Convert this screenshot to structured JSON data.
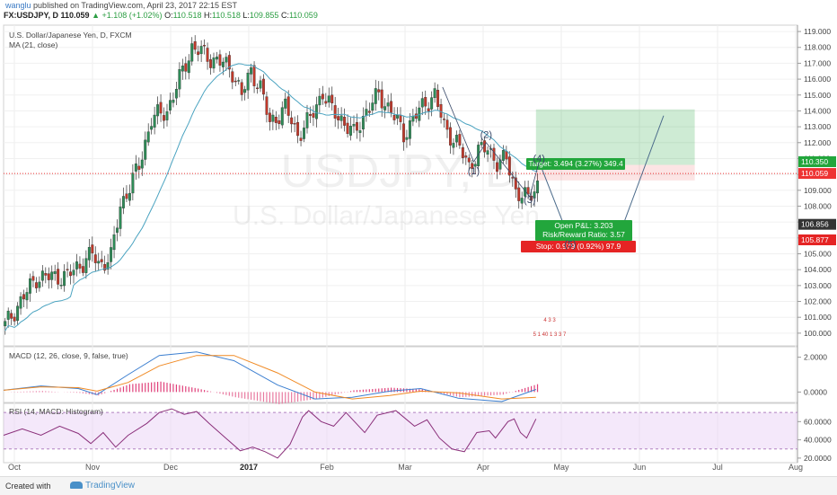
{
  "header": {
    "user": "wanglu",
    "published": "published on TradingView.com, April 23, 2017 22:15 EST",
    "symbol": "FX:USDJPY, D",
    "last": "110.059",
    "change": "▲ +1.108 (+1.02%)",
    "open_label": "O:",
    "open": "110.518",
    "high_label": "H:",
    "high": "110.518",
    "low_label": "L:",
    "low": "109.855",
    "close_label": "C:",
    "close": "110.059"
  },
  "legends": {
    "main_title": "U.S. Dollar/Japanese Yen, D, FXCM",
    "ma": "MA (21, close)",
    "macd": "MACD (12, 26, close, 9, false, true)",
    "rsi": "RSI (14, MACD: Histogram)"
  },
  "watermark": {
    "symbol": "USDJPY, D",
    "name": "U.S. Dollar/Japanese Yen"
  },
  "footer": {
    "created": "Created with",
    "brand": "TradingView"
  },
  "colors": {
    "up": "#2e8b57",
    "down": "#c0392b",
    "ma": "#4aa3c0",
    "macd": "#3c7fd0",
    "signal": "#f08a24",
    "rsi": "#8a2f7a",
    "target": "#22a63c",
    "stop": "#e52424"
  },
  "chart_data": [
    {
      "type": "candlestick",
      "title": "U.S. Dollar/Japanese Yen, D, FXCM",
      "ylim": [
        99.2,
        119.4
      ],
      "yticks": [
        "119.000",
        "118.000",
        "117.000",
        "116.000",
        "115.000",
        "114.000",
        "113.000",
        "112.000",
        "111.000",
        "110.000",
        "109.000",
        "108.000",
        "107.000",
        "106.000",
        "105.000",
        "104.000",
        "103.000",
        "102.000",
        "101.000",
        "100.000"
      ],
      "xticks": [
        "Oct",
        "Nov",
        "Dec",
        "2017",
        "Feb",
        "Mar",
        "Apr",
        "May",
        "Jun",
        "Jul",
        "Aug"
      ],
      "price_labels": {
        "last": "110.059",
        "high_marker": "110.350",
        "open_pnl": "106.856",
        "stop": "105.877"
      },
      "waypoints": [
        [
          0,
          100.5
        ],
        [
          10,
          103.5
        ],
        [
          20,
          103.6
        ],
        [
          28,
          105.0
        ],
        [
          30,
          104.3
        ],
        [
          34,
          104.8
        ],
        [
          37,
          108.0
        ],
        [
          43,
          110.5
        ],
        [
          47,
          113.5
        ],
        [
          52,
          114.0
        ],
        [
          56,
          116.0
        ],
        [
          60,
          118.0
        ],
        [
          63,
          117.7
        ],
        [
          66,
          117.3
        ],
        [
          70,
          117.0
        ],
        [
          73,
          116.5
        ],
        [
          76,
          115.0
        ],
        [
          79,
          116.5
        ],
        [
          82,
          115.5
        ],
        [
          85,
          113.2
        ],
        [
          90,
          114.2
        ],
        [
          94,
          112.5
        ],
        [
          98,
          113.5
        ],
        [
          102,
          115.2
        ],
        [
          105,
          114.0
        ],
        [
          108,
          113.5
        ],
        [
          112,
          112.5
        ],
        [
          116,
          114.0
        ],
        [
          120,
          115.0
        ],
        [
          124,
          114.0
        ],
        [
          128,
          112.5
        ],
        [
          131,
          113.5
        ],
        [
          135,
          114.5
        ],
        [
          138,
          115.0
        ],
        [
          141,
          113.0
        ],
        [
          145,
          112.0
        ],
        [
          149,
          110.5
        ],
        [
          152,
          111.5
        ],
        [
          155,
          111.6
        ],
        [
          158,
          110.8
        ],
        [
          161,
          110.9
        ],
        [
          164,
          109.0
        ],
        [
          168,
          108.4
        ],
        [
          171,
          109.4
        ]
      ],
      "annotations": {
        "waves": [
          {
            "label": "(1)",
            "t": 151,
            "p": 110.0
          },
          {
            "label": "(2)",
            "t": 155,
            "p": 112.3
          },
          {
            "label": "(3)",
            "t": 169,
            "p": 108.2
          },
          {
            "label": "(4)",
            "t": 172,
            "p": 110.8
          },
          {
            "label": "(5)",
            "t": 182,
            "p": 105.4
          }
        ],
        "target": "Target: 3.494 (3.27%) 349.4",
        "open_pnl": "Open P&L: 3.203",
        "risk_reward": "Risk/Reward Ratio: 3.57",
        "stop": "Stop: 0.979 (0.92%) 97.9",
        "events": [
          "4 3 3",
          "5 1 40 1 3 3 7"
        ]
      }
    },
    {
      "type": "line",
      "title": "MACD (12, 26, close, 9, false, true)",
      "ylim": [
        -0.6,
        2.6
      ],
      "yticks": [
        "2.0000",
        "0.0000"
      ],
      "series": [
        {
          "name": "MACD",
          "points": [
            [
              0,
              0.1
            ],
            [
              12,
              0.35
            ],
            [
              24,
              0.2
            ],
            [
              30,
              -0.15
            ],
            [
              40,
              1.0
            ],
            [
              50,
              2.1
            ],
            [
              62,
              2.3
            ],
            [
              74,
              1.8
            ],
            [
              88,
              0.4
            ],
            [
              100,
              -0.4
            ],
            [
              112,
              -0.3
            ],
            [
              124,
              0.05
            ],
            [
              134,
              0.2
            ],
            [
              146,
              -0.35
            ],
            [
              160,
              -0.55
            ],
            [
              171,
              0.15
            ]
          ]
        },
        {
          "name": "Signal",
          "points": [
            [
              0,
              0.1
            ],
            [
              12,
              0.3
            ],
            [
              24,
              0.25
            ],
            [
              30,
              0.05
            ],
            [
              40,
              0.55
            ],
            [
              50,
              1.5
            ],
            [
              62,
              2.1
            ],
            [
              74,
              2.1
            ],
            [
              88,
              1.1
            ],
            [
              100,
              0.0
            ],
            [
              112,
              -0.4
            ],
            [
              124,
              -0.2
            ],
            [
              134,
              0.05
            ],
            [
              146,
              -0.05
            ],
            [
              160,
              -0.4
            ],
            [
              171,
              -0.3
            ]
          ]
        }
      ]
    },
    {
      "type": "line",
      "title": "RSI (14, MACD: Histogram)",
      "ylim": [
        15,
        80
      ],
      "yticks": [
        "60.0000",
        "40.0000",
        "20.0000"
      ],
      "band": [
        30,
        70
      ],
      "series": [
        {
          "name": "RSI",
          "points": [
            [
              0,
              45
            ],
            [
              6,
              52
            ],
            [
              12,
              45
            ],
            [
              18,
              55
            ],
            [
              24,
              47
            ],
            [
              28,
              36
            ],
            [
              32,
              48
            ],
            [
              36,
              32
            ],
            [
              40,
              45
            ],
            [
              46,
              58
            ],
            [
              50,
              70
            ],
            [
              54,
              74
            ],
            [
              58,
              68
            ],
            [
              62,
              71
            ],
            [
              66,
              58
            ],
            [
              72,
              40
            ],
            [
              76,
              28
            ],
            [
              80,
              32
            ],
            [
              84,
              27
            ],
            [
              88,
              20
            ],
            [
              92,
              35
            ],
            [
              96,
              65
            ],
            [
              98,
              72
            ],
            [
              102,
              60
            ],
            [
              106,
              55
            ],
            [
              110,
              70
            ],
            [
              116,
              48
            ],
            [
              120,
              67
            ],
            [
              126,
              72
            ],
            [
              132,
              55
            ],
            [
              136,
              62
            ],
            [
              140,
              42
            ],
            [
              144,
              30
            ],
            [
              148,
              27
            ],
            [
              152,
              48
            ],
            [
              156,
              50
            ],
            [
              158,
              42
            ],
            [
              162,
              60
            ],
            [
              164,
              63
            ],
            [
              166,
              48
            ],
            [
              168,
              42
            ],
            [
              171,
              63
            ]
          ]
        }
      ]
    }
  ]
}
